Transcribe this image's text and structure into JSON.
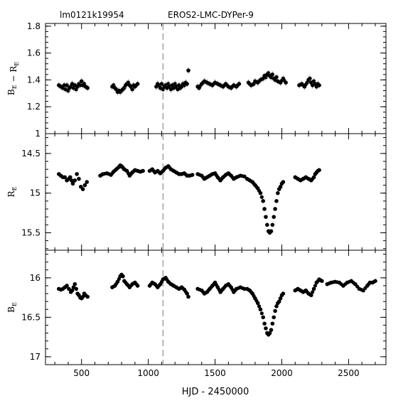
{
  "chart_data": {
    "type": "scatter",
    "header": {
      "left": "lm0121k19954",
      "right": "EROS2-LMC-DYPer-9"
    },
    "xlabel": "HJD - 2450000",
    "xlim": [
      230,
      2780
    ],
    "x_ticks": [
      500,
      1000,
      1500,
      2000,
      2500
    ],
    "vline_x": 1110,
    "panels": [
      {
        "id": "color",
        "ylabel_main": "B",
        "ylabel_sub": "E",
        "ylabel_minus": "−",
        "ylabel_main2": "R",
        "ylabel_sub2": "E",
        "ylim": [
          1.0,
          1.82
        ],
        "inverted": false,
        "y_ticks": [
          1,
          1.2,
          1.4,
          1.6,
          1.8
        ],
        "y_tick_labels": [
          "1",
          "1.2",
          "1.4",
          "1.6",
          "1.8"
        ],
        "show_errorbars": true,
        "error": 0.025,
        "segments": [
          {
            "x": [
              330,
              345,
              360,
              370,
              380,
              390,
              400,
              410,
              420,
              430,
              440,
              450,
              460,
              470,
              480,
              490,
              500,
              510,
              520,
              530,
              545
            ],
            "y": [
              1.36,
              1.35,
              1.34,
              1.36,
              1.33,
              1.36,
              1.32,
              1.34,
              1.35,
              1.37,
              1.34,
              1.36,
              1.33,
              1.35,
              1.37,
              1.36,
              1.39,
              1.36,
              1.37,
              1.35,
              1.34
            ]
          },
          {
            "x": [
              730,
              740,
              750,
              760,
              770,
              780,
              790,
              800,
              810,
              820,
              830,
              840,
              850,
              860,
              870,
              880,
              890,
              900,
              920
            ],
            "y": [
              1.35,
              1.36,
              1.34,
              1.33,
              1.31,
              1.32,
              1.31,
              1.32,
              1.33,
              1.34,
              1.36,
              1.37,
              1.38,
              1.36,
              1.35,
              1.33,
              1.36,
              1.35,
              1.37
            ]
          },
          {
            "x": [
              1060,
              1070,
              1080,
              1090,
              1100,
              1110,
              1120,
              1130,
              1140,
              1150,
              1160,
              1170,
              1180,
              1190,
              1200,
              1210,
              1220,
              1230,
              1240,
              1250,
              1260,
              1270,
              1280,
              1290,
              1300
            ],
            "y": [
              1.35,
              1.37,
              1.36,
              1.34,
              1.37,
              1.33,
              1.35,
              1.36,
              1.34,
              1.37,
              1.35,
              1.33,
              1.36,
              1.34,
              1.37,
              1.35,
              1.33,
              1.36,
              1.34,
              1.35,
              1.37,
              1.36,
              1.38,
              1.37,
              1.47
            ]
          },
          {
            "x": [
              1370,
              1380,
              1400,
              1420,
              1440,
              1460,
              1480,
              1500,
              1520,
              1540,
              1560,
              1580,
              1600,
              1620,
              1640,
              1660,
              1680
            ],
            "y": [
              1.35,
              1.34,
              1.37,
              1.39,
              1.38,
              1.37,
              1.36,
              1.38,
              1.37,
              1.36,
              1.35,
              1.37,
              1.35,
              1.34,
              1.36,
              1.35,
              1.37
            ]
          },
          {
            "x": [
              1750,
              1770,
              1790,
              1800,
              1820,
              1840,
              1860,
              1870,
              1880,
              1890,
              1900,
              1910,
              1920,
              1930,
              1940,
              1950,
              1960,
              1970,
              1990,
              2010,
              2030
            ],
            "y": [
              1.38,
              1.36,
              1.37,
              1.39,
              1.38,
              1.4,
              1.41,
              1.43,
              1.42,
              1.44,
              1.45,
              1.43,
              1.42,
              1.44,
              1.41,
              1.4,
              1.42,
              1.39,
              1.38,
              1.41,
              1.38
            ]
          },
          {
            "x": [
              2130,
              2150,
              2170,
              2190,
              2200,
              2210,
              2220,
              2230,
              2240,
              2250,
              2260,
              2270,
              2280
            ],
            "y": [
              1.36,
              1.37,
              1.35,
              1.38,
              1.4,
              1.41,
              1.38,
              1.36,
              1.39,
              1.37,
              1.35,
              1.37,
              1.36
            ]
          }
        ]
      },
      {
        "id": "red",
        "ylabel_main": "R",
        "ylabel_sub": "E",
        "ylim": [
          14.25,
          15.72
        ],
        "inverted": true,
        "y_ticks": [
          14.5,
          15,
          15.5
        ],
        "y_tick_labels": [
          "14.5",
          "15",
          "15.5"
        ],
        "show_errorbars": false,
        "segments": [
          {
            "x": [
              330,
              345,
              360,
              375,
              390,
              405,
              415,
              425,
              435,
              450,
              465,
              480,
              495,
              510,
              525,
              540
            ],
            "y": [
              14.76,
              14.78,
              14.8,
              14.8,
              14.84,
              14.82,
              14.8,
              14.84,
              14.88,
              14.84,
              14.76,
              14.82,
              14.92,
              14.95,
              14.9,
              14.86
            ]
          },
          {
            "x": [
              640,
              660,
              690,
              720,
              740,
              760,
              780,
              790,
              800,
              810,
              820,
              840,
              860,
              880,
              900,
              920,
              940,
              960
            ],
            "y": [
              14.78,
              14.76,
              14.75,
              14.77,
              14.73,
              14.7,
              14.67,
              14.65,
              14.66,
              14.68,
              14.7,
              14.72,
              14.78,
              14.74,
              14.71,
              14.72,
              14.73,
              14.72
            ]
          },
          {
            "x": [
              1010,
              1030,
              1050,
              1070,
              1090,
              1110,
              1130,
              1150,
              1170,
              1190,
              1210,
              1230,
              1250,
              1270,
              1290,
              1310,
              1330
            ],
            "y": [
              14.72,
              14.7,
              14.74,
              14.72,
              14.75,
              14.72,
              14.68,
              14.66,
              14.7,
              14.72,
              14.74,
              14.76,
              14.76,
              14.75,
              14.78,
              14.78,
              14.77
            ]
          },
          {
            "x": [
              1370,
              1400,
              1420,
              1440,
              1460,
              1480,
              1500,
              1520,
              1540,
              1560,
              1580,
              1600,
              1620,
              1640,
              1660,
              1690,
              1720
            ],
            "y": [
              14.76,
              14.78,
              14.82,
              14.8,
              14.78,
              14.76,
              14.75,
              14.8,
              14.84,
              14.8,
              14.77,
              14.75,
              14.78,
              14.82,
              14.8,
              14.78,
              14.79
            ]
          },
          {
            "x": [
              1740,
              1760,
              1780,
              1800,
              1820,
              1840,
              1860,
              1870,
              1880,
              1890,
              1900,
              1910,
              1920,
              1930,
              1940,
              1950,
              1960,
              1970,
              1980,
              1990,
              2000,
              2010
            ],
            "y": [
              14.82,
              14.84,
              14.86,
              14.9,
              14.94,
              15.0,
              15.1,
              15.2,
              15.3,
              15.4,
              15.48,
              15.5,
              15.48,
              15.4,
              15.3,
              15.2,
              15.1,
              15.0,
              14.95,
              14.92,
              14.88,
              14.86
            ]
          },
          {
            "x": [
              2100,
              2120,
              2140,
              2160,
              2180,
              2200,
              2220,
              2240,
              2250,
              2260,
              2270,
              2280
            ],
            "y": [
              14.8,
              14.82,
              14.84,
              14.82,
              14.8,
              14.82,
              14.84,
              14.8,
              14.76,
              14.74,
              14.72,
              14.71
            ]
          }
        ]
      },
      {
        "id": "blue",
        "ylabel_main": "B",
        "ylabel_sub": "E",
        "ylim": [
          15.65,
          17.1
        ],
        "inverted": true,
        "y_ticks": [
          16,
          16.5,
          17
        ],
        "y_tick_labels": [
          "16",
          "16.5",
          "17"
        ],
        "show_errorbars": false,
        "segments": [
          {
            "x": [
              330,
              345,
              360,
              375,
              390,
              405,
              420,
              430,
              440,
              450,
              460,
              470,
              480,
              490,
              500,
              510,
              520,
              530,
              545
            ],
            "y": [
              16.14,
              16.15,
              16.14,
              16.12,
              16.1,
              16.14,
              16.18,
              16.16,
              16.12,
              16.08,
              16.14,
              16.2,
              16.22,
              16.25,
              16.26,
              16.24,
              16.2,
              16.22,
              16.24
            ]
          },
          {
            "x": [
              730,
              750,
              770,
              790,
              800,
              810,
              820,
              840,
              860,
              880,
              900,
              920
            ],
            "y": [
              16.12,
              16.1,
              16.05,
              15.98,
              15.96,
              15.98,
              16.04,
              16.08,
              16.12,
              16.08,
              16.06,
              16.1
            ]
          },
          {
            "x": [
              1010,
              1030,
              1050,
              1070,
              1090,
              1110,
              1130,
              1150,
              1170,
              1190,
              1210,
              1230,
              1250,
              1270,
              1290,
              1300
            ],
            "y": [
              16.1,
              16.06,
              16.08,
              16.12,
              16.08,
              16.02,
              16.0,
              16.05,
              16.08,
              16.1,
              16.12,
              16.14,
              16.12,
              16.15,
              16.2,
              16.24
            ]
          },
          {
            "x": [
              1370,
              1400,
              1420,
              1440,
              1460,
              1480,
              1500,
              1520,
              1540,
              1560,
              1580,
              1600,
              1620,
              1640,
              1660,
              1690,
              1720
            ],
            "y": [
              16.14,
              16.16,
              16.2,
              16.18,
              16.14,
              16.1,
              16.06,
              16.12,
              16.18,
              16.14,
              16.1,
              16.08,
              16.12,
              16.18,
              16.14,
              16.12,
              16.14
            ]
          },
          {
            "x": [
              1740,
              1760,
              1780,
              1800,
              1820,
              1840,
              1860,
              1870,
              1880,
              1890,
              1900,
              1910,
              1920,
              1930,
              1940,
              1950,
              1960,
              1970,
              1980,
              1990,
              2000,
              2010
            ],
            "y": [
              16.14,
              16.16,
              16.2,
              16.26,
              16.32,
              16.4,
              16.5,
              16.58,
              16.64,
              16.7,
              16.72,
              16.7,
              16.66,
              16.58,
              16.5,
              16.42,
              16.36,
              16.32,
              16.3,
              16.26,
              16.22,
              16.2
            ]
          },
          {
            "x": [
              2100,
              2120,
              2140,
              2160,
              2180,
              2200,
              2220,
              2240,
              2260,
              2280,
              2300
            ],
            "y": [
              16.16,
              16.14,
              16.16,
              16.18,
              16.16,
              16.2,
              16.22,
              16.14,
              16.06,
              16.02,
              16.04
            ]
          },
          {
            "x": [
              2340,
              2370,
              2400,
              2430,
              2460,
              2490,
              2520,
              2550,
              2580,
              2610,
              2640,
              2660,
              2680,
              2700
            ],
            "y": [
              16.08,
              16.06,
              16.05,
              16.06,
              16.1,
              16.06,
              16.04,
              16.08,
              16.14,
              16.16,
              16.1,
              16.06,
              16.06,
              16.04
            ]
          }
        ]
      }
    ]
  }
}
